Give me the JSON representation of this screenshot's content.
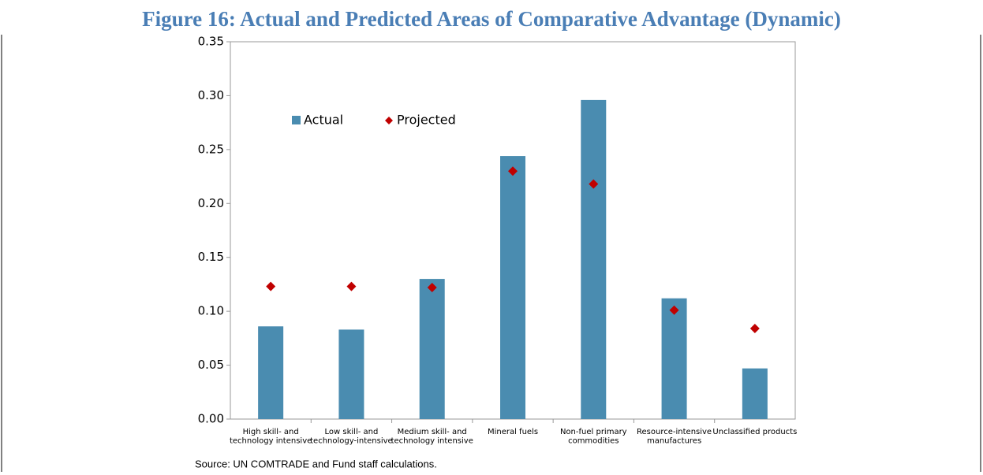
{
  "chart_data": {
    "type": "bar",
    "title": "Figure 16: Actual and Predicted Areas of Comparative Advantage (Dynamic)",
    "source": "Source: UN COMTRADE and Fund staff calculations.",
    "categories": [
      "High skill- and\ntechnology intensive",
      "Low skill- and\ntechnology-intensive",
      "Medium skill- and\ntechnology intensive",
      "Mineral fuels",
      "Non-fuel primary\ncommodities",
      "Resource-intensive\nmanufactures",
      "Unclassified products"
    ],
    "series": [
      {
        "name": "Actual",
        "color": "#4a8cb0",
        "values": [
          0.086,
          0.083,
          0.13,
          0.244,
          0.296,
          0.112,
          0.047
        ]
      },
      {
        "name": "Projected",
        "color": "#c00000",
        "values": [
          0.123,
          0.123,
          0.122,
          0.23,
          0.218,
          0.101,
          0.084
        ]
      }
    ],
    "ylim": [
      0,
      0.35
    ],
    "yticks": [
      {
        "value": 0,
        "label": "0.00"
      },
      {
        "value": 0.05,
        "label": "0.05"
      },
      {
        "value": 0.1,
        "label": "0.10"
      },
      {
        "value": 0.15,
        "label": "0.15"
      },
      {
        "value": 0.2,
        "label": "0.20"
      },
      {
        "value": 0.25,
        "label": "0.25"
      },
      {
        "value": 0.3,
        "label": "0.30"
      },
      {
        "value": 0.35,
        "label": "0.35"
      }
    ],
    "grid": false,
    "legend": "top-left"
  }
}
